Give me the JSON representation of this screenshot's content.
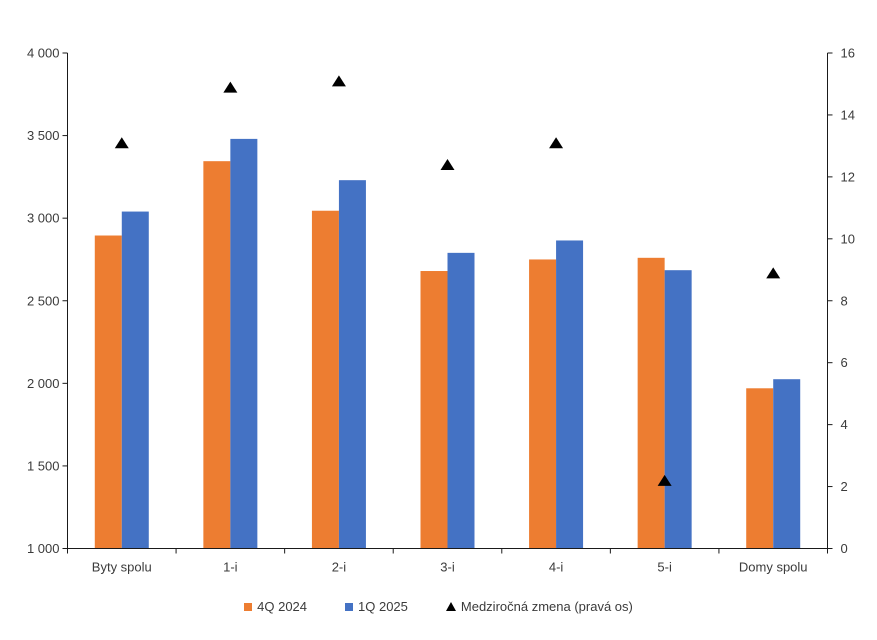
{
  "chart_data": {
    "type": "bar",
    "title": "",
    "categories": [
      "Byty spolu",
      "1-i",
      "2-i",
      "3-i",
      "4-i",
      "5-i",
      "Domy spolu"
    ],
    "series": [
      {
        "name": "4Q 2024",
        "type": "bar",
        "axis": "left",
        "color": "#ED7D31",
        "values": [
          2895,
          3345,
          3045,
          2680,
          2750,
          2760,
          1970
        ]
      },
      {
        "name": "1Q 2025",
        "type": "bar",
        "axis": "left",
        "color": "#4472C4",
        "values": [
          3040,
          3480,
          3230,
          2790,
          2865,
          2685,
          2025
        ]
      },
      {
        "name": "Medziročná zmena (pravá os)",
        "type": "scatter",
        "marker": "triangle",
        "axis": "right",
        "color": "#000000",
        "values": [
          13.1,
          14.9,
          15.1,
          12.4,
          13.1,
          2.2,
          8.9
        ]
      }
    ],
    "left_axis": {
      "min": 1000,
      "max": 4000,
      "step": 500,
      "tick_labels": [
        "4 000",
        "3 500",
        "3 000",
        "2 500",
        "2 000",
        "1 500",
        "1 000"
      ]
    },
    "right_axis": {
      "min": 0,
      "max": 16,
      "step": 2,
      "tick_labels": [
        "16",
        "14",
        "12",
        "10",
        "8",
        "6",
        "4",
        "2",
        "0"
      ]
    },
    "grid": false,
    "legend_position": "bottom",
    "axis_color": "#1a1a1a",
    "text_color": "#3b3b3b"
  }
}
